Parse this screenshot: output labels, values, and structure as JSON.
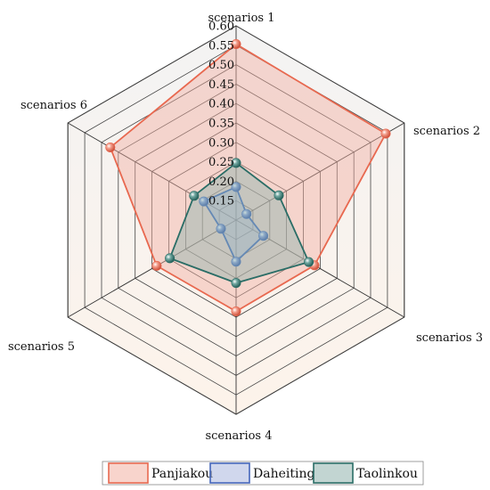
{
  "chart_data": {
    "type": "radar",
    "title": "",
    "axes": [
      "scenarios 1",
      "scenarios 2",
      "scenarios 3",
      "scenarios 4",
      "scenarios 5",
      "scenarios 6"
    ],
    "r_ticks": [
      "0.15",
      "0.20",
      "0.25",
      "0.30",
      "0.35",
      "0.40",
      "0.45",
      "0.50",
      "0.55",
      "0.60"
    ],
    "r_range": [
      0.1,
      0.6
    ],
    "grid": true,
    "legend_position": "bottom",
    "series": [
      {
        "name": "Panjiakou",
        "color": "#e8684f",
        "fill": "#f2b0a2",
        "values": [
          0.553,
          0.545,
          0.333,
          0.335,
          0.336,
          0.474
        ]
      },
      {
        "name": "Daheiting",
        "color": "#4466bb",
        "fill": "#a9b6de",
        "values": [
          0.185,
          0.131,
          0.181,
          0.207,
          0.145,
          0.196
        ]
      },
      {
        "name": "Taolinkou",
        "color": "#2a6d66",
        "fill": "#8fb3ad",
        "values": [
          0.247,
          0.227,
          0.316,
          0.262,
          0.297,
          0.225
        ]
      }
    ]
  }
}
